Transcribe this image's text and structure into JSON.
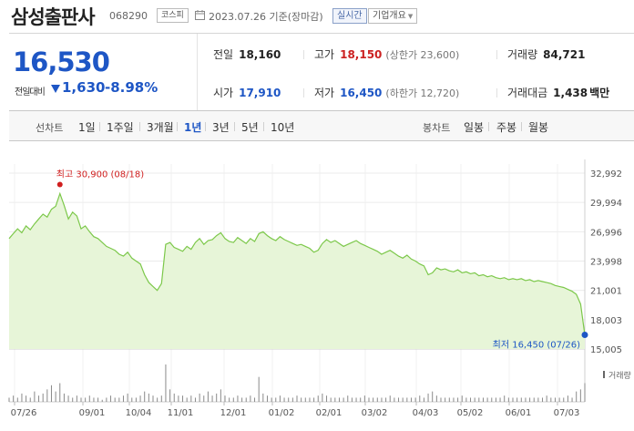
{
  "header": {
    "name": "삼성출판사",
    "code": "068290",
    "market": "코스피",
    "date": "2023.07.26 기준(장마감)",
    "realtime_label": "실시간",
    "overview_label": "기업개요"
  },
  "price": {
    "current": "16,530",
    "change_label": "전일대비",
    "change_amount": "1,630",
    "change_rate": "-8.98%",
    "direction": "down",
    "color": "#1e56c5"
  },
  "stats": {
    "prev_close_label": "전일",
    "prev_close": "18,160",
    "high_label": "고가",
    "high": "18,150",
    "upper_limit": "(상한가 23,600)",
    "volume_label": "거래량",
    "volume": "84,721",
    "open_label": "시가",
    "open": "17,910",
    "low_label": "저가",
    "low": "16,450",
    "lower_limit": "(하한가 12,720)",
    "amount_label": "거래대금",
    "amount": "1,438",
    "amount_unit": "백만"
  },
  "toolbar": {
    "line_chart_label": "선차트",
    "periods": [
      "1일",
      "1주일",
      "3개월",
      "1년",
      "3년",
      "5년",
      "10년"
    ],
    "active_period": "1년",
    "candle_chart_label": "봉차트",
    "candles": [
      "일봉",
      "주봉",
      "월봉"
    ]
  },
  "chart_data": {
    "type": "area",
    "y_ticks": [
      "32,992",
      "29,994",
      "26,996",
      "23,998",
      "21,001",
      "18,003",
      "15,005"
    ],
    "ylim": [
      15005,
      32992
    ],
    "x_ticks": [
      "07/26",
      "09/01",
      "10/04",
      "11/01",
      "12/01",
      "01/02",
      "02/01",
      "03/02",
      "04/03",
      "05/02",
      "06/01",
      "07/03"
    ],
    "high_annotation": "최고 30,900 (08/18)",
    "low_annotation": "최저 16,450 (07/26)",
    "high_value": 30900,
    "low_value": 16450,
    "volume_label": "거래량",
    "line_color": "#7cc84a",
    "fill_color": "#e7f5d8",
    "series": [
      {
        "values": [
          26300,
          26800,
          27300,
          26900,
          27600,
          27200,
          27800,
          28300,
          28800,
          28500,
          29300,
          29600,
          30900,
          29700,
          28300,
          29000,
          28600,
          27300,
          27600,
          27000,
          26500,
          26300,
          25900,
          25500,
          25300,
          25100,
          24700,
          24500,
          24900,
          24300,
          24000,
          23700,
          22600,
          21800,
          21400,
          21000,
          21700,
          25700,
          25900,
          25400,
          25200,
          25000,
          25500,
          25200,
          25900,
          26300,
          25700,
          26100,
          26200,
          26600,
          26900,
          26300,
          26000,
          25900,
          26400,
          26100,
          25800,
          26300,
          26000,
          26800,
          27000,
          26600,
          26300,
          26100,
          26500,
          26200,
          26000,
          25800,
          25600,
          25700,
          25500,
          25300,
          24900,
          25100,
          25800,
          26200,
          25900,
          26100,
          25800,
          25500,
          25700,
          25900,
          26100,
          25800,
          25600,
          25400,
          25200,
          25000,
          24700,
          24900,
          25100,
          24800,
          24500,
          24300,
          24600,
          24200,
          24000,
          23700,
          23500,
          22600,
          22800,
          23300,
          23100,
          23200,
          23000,
          22900,
          23100,
          22800,
          22900,
          22700,
          22800,
          22500,
          22600,
          22400,
          22500,
          22300,
          22200,
          22300,
          22100,
          22200,
          22100,
          22200,
          22000,
          22100,
          21900,
          22000,
          21900,
          21800,
          21700,
          21500,
          21400,
          21300,
          21100,
          20900,
          20600,
          19600,
          16450
        ]
      }
    ],
    "volumes": [
      2,
      3,
      2,
      4,
      3,
      2,
      5,
      3,
      4,
      6,
      8,
      5,
      9,
      4,
      3,
      2,
      3,
      2,
      2,
      3,
      2,
      2,
      1,
      2,
      3,
      2,
      2,
      3,
      4,
      2,
      2,
      3,
      5,
      4,
      3,
      2,
      3,
      18,
      6,
      4,
      3,
      3,
      2,
      3,
      2,
      4,
      3,
      5,
      3,
      4,
      6,
      3,
      2,
      2,
      3,
      2,
      2,
      3,
      2,
      12,
      4,
      3,
      2,
      2,
      3,
      2,
      2,
      2,
      3,
      2,
      2,
      2,
      2,
      3,
      4,
      3,
      2,
      2,
      2,
      2,
      3,
      2,
      2,
      2,
      3,
      2,
      2,
      2,
      2,
      2,
      3,
      2,
      2,
      2,
      2,
      2,
      2,
      3,
      2,
      4,
      5,
      3,
      2,
      2,
      2,
      2,
      2,
      3,
      2,
      2,
      2,
      2,
      2,
      2,
      2,
      2,
      2,
      3,
      2,
      2,
      2,
      2,
      2,
      2,
      2,
      2,
      2,
      3,
      2,
      2,
      2,
      2,
      3,
      2,
      5,
      6,
      9
    ]
  }
}
